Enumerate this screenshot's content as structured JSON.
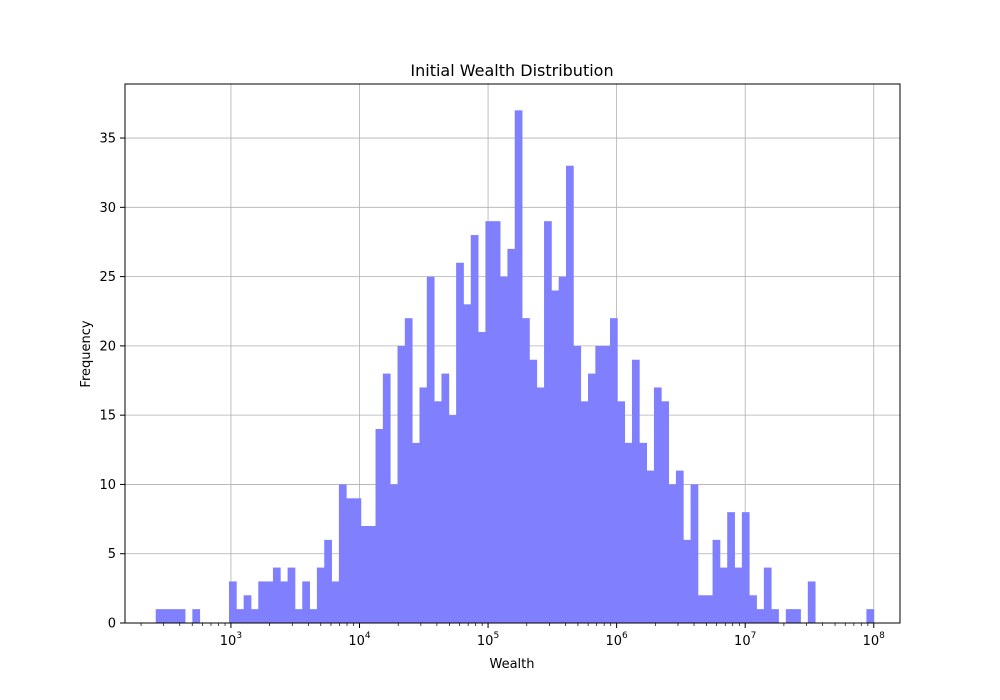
{
  "chart_data": {
    "type": "bar",
    "title": "Initial Wealth Distribution",
    "xlabel": "Wealth",
    "ylabel": "Frequency",
    "xscale": "log",
    "xlim": [
      150,
      160000000
    ],
    "ylim": [
      0,
      38.9
    ],
    "grid": true,
    "color": "#8080ff",
    "x_ticks": [
      {
        "value": 1000,
        "base": "10",
        "exp": "3"
      },
      {
        "value": 10000,
        "base": "10",
        "exp": "4"
      },
      {
        "value": 100000,
        "base": "10",
        "exp": "5"
      },
      {
        "value": 1000000,
        "base": "10",
        "exp": "6"
      },
      {
        "value": 10000000,
        "base": "10",
        "exp": "7"
      },
      {
        "value": 100000000,
        "base": "10",
        "exp": "8"
      }
    ],
    "y_ticks": [
      0,
      5,
      10,
      15,
      20,
      25,
      30,
      35
    ],
    "bins": {
      "x_min": 260,
      "x_max": 130000000,
      "counts": [
        1,
        1,
        1,
        1,
        0,
        1,
        0,
        0,
        0,
        0,
        3,
        1,
        2,
        1,
        3,
        3,
        4,
        3,
        4,
        1,
        3,
        1,
        4,
        6,
        3,
        10,
        9,
        9,
        7,
        7,
        14,
        18,
        10,
        20,
        22,
        13,
        17,
        25,
        16,
        18,
        15,
        26,
        23,
        28,
        21,
        29,
        29,
        25,
        27,
        37,
        22,
        19,
        17,
        29,
        24,
        25,
        33,
        20,
        16,
        18,
        20,
        20,
        22,
        16,
        13,
        19,
        13,
        11,
        17,
        16,
        10,
        11,
        6,
        10,
        2,
        2,
        6,
        4,
        8,
        4,
        8,
        2,
        1,
        4,
        1,
        0,
        1,
        1,
        0,
        3,
        0,
        0,
        0,
        0,
        0,
        0,
        0,
        1,
        0,
        0
      ]
    }
  }
}
